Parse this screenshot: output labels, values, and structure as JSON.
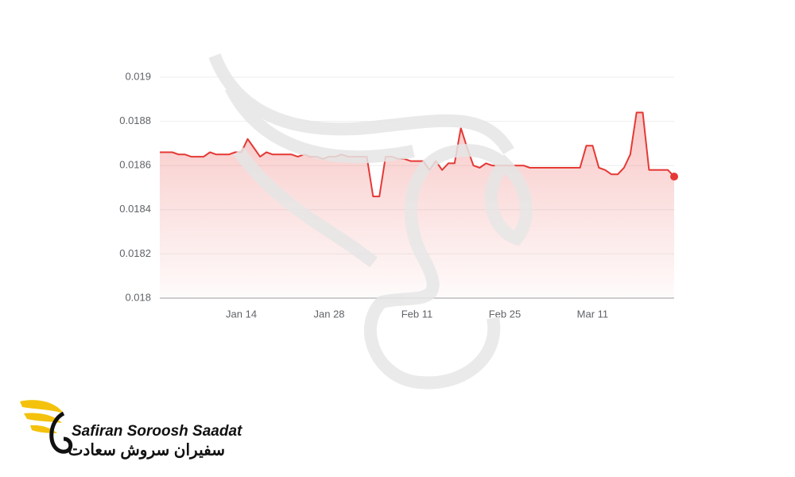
{
  "chart_data": {
    "type": "line",
    "categories": [
      null,
      null,
      null,
      null,
      null,
      null,
      null,
      null,
      null,
      null,
      null,
      null,
      null,
      "Jan 14",
      null,
      null,
      null,
      null,
      null,
      null,
      null,
      null,
      null,
      null,
      null,
      null,
      null,
      "Jan 28",
      null,
      null,
      null,
      null,
      null,
      null,
      null,
      null,
      null,
      null,
      null,
      null,
      null,
      "Feb 11",
      null,
      null,
      null,
      null,
      null,
      null,
      null,
      null,
      null,
      null,
      null,
      null,
      null,
      "Feb 25",
      null,
      null,
      null,
      null,
      null,
      null,
      null,
      null,
      null,
      null,
      null,
      null,
      null,
      "Mar 11",
      null,
      null,
      null,
      null,
      null,
      null,
      null,
      null,
      null,
      null,
      null,
      null,
      null
    ],
    "values": [
      0.01866,
      0.01866,
      0.01866,
      0.01865,
      0.01865,
      0.01864,
      0.01864,
      0.01864,
      0.01866,
      0.01865,
      0.01865,
      0.01865,
      0.01866,
      0.01866,
      0.01872,
      0.01868,
      0.01864,
      0.01866,
      0.01865,
      0.01865,
      0.01865,
      0.01865,
      0.01864,
      0.01865,
      0.01864,
      0.01864,
      0.01863,
      0.01864,
      0.01864,
      0.01865,
      0.01864,
      0.01864,
      0.01864,
      0.01864,
      0.01846,
      0.01846,
      0.01864,
      0.01864,
      0.01863,
      0.01863,
      0.01862,
      0.01862,
      0.01862,
      0.01858,
      0.01862,
      0.01858,
      0.01861,
      0.01861,
      0.01877,
      0.01868,
      0.0186,
      0.01859,
      0.01861,
      0.0186,
      0.0186,
      0.0186,
      0.0186,
      0.0186,
      0.0186,
      0.01859,
      0.01859,
      0.01859,
      0.01859,
      0.01859,
      0.01859,
      0.01859,
      0.01859,
      0.01859,
      0.01869,
      0.01869,
      0.01859,
      0.01858,
      0.01856,
      0.01856,
      0.01859,
      0.01865,
      0.01884,
      0.01884,
      0.01858,
      0.01858,
      0.01858,
      0.01858,
      0.01855
    ],
    "color": "#e53935",
    "ylim": [
      0.018,
      0.019
    ],
    "yticks": [
      0.018,
      0.0182,
      0.0184,
      0.0186,
      0.0188,
      0.019
    ],
    "grid": true
  },
  "logo": {
    "name": "Safiran Soroosh Saadat",
    "name_fa": "سفیران سروش سعادت"
  }
}
